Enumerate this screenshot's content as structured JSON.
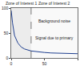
{
  "chart_data": {
    "type": "line",
    "x": [
      0,
      2,
      5,
      10,
      15,
      20,
      30,
      40,
      50,
      60,
      70,
      80,
      90,
      100
    ],
    "series": [
      {
        "name": "Signal",
        "color": "#1f3f8f",
        "values": [
          95,
          70,
          45,
          30,
          22,
          18,
          14,
          12,
          11,
          10,
          9.5,
          9,
          9,
          8.5
        ]
      }
    ],
    "xlim": [
      0,
      100
    ],
    "xticks": [
      0,
      50,
      100
    ],
    "ylim": [
      0,
      100
    ],
    "yticks": [
      0,
      50,
      100
    ],
    "zones": [
      {
        "label": "Zone of Interest 1",
        "x0": 0,
        "x1": 30
      },
      {
        "label": "Zone of Interest 2",
        "x0": 30,
        "x1": 100
      }
    ],
    "annotations": [
      {
        "text": "Background noise",
        "x": 65,
        "y": 75
      },
      {
        "text": "Signal due to primary",
        "x": 65,
        "y": 40
      }
    ],
    "grid": false
  }
}
